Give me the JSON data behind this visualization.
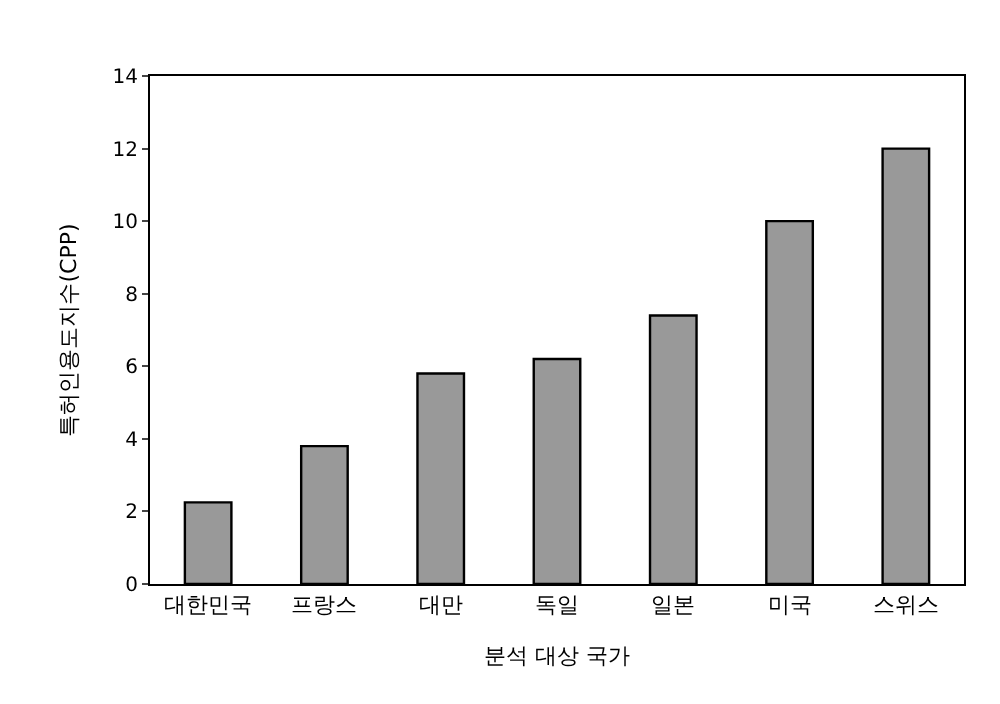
{
  "chart_data": {
    "type": "bar",
    "xlabel": "분석 대상 국가",
    "ylabel": "특허인용도지수(CPP)",
    "categories": [
      "대한민국",
      "프랑스",
      "대만",
      "독일",
      "일본",
      "미국",
      "스위스"
    ],
    "values": [
      2.25,
      3.8,
      5.8,
      6.2,
      7.4,
      10.0,
      12.0
    ],
    "color": "#999999",
    "ylim": [
      0,
      14
    ],
    "yticks": [
      0,
      2,
      4,
      6,
      8,
      10,
      12,
      14
    ]
  }
}
